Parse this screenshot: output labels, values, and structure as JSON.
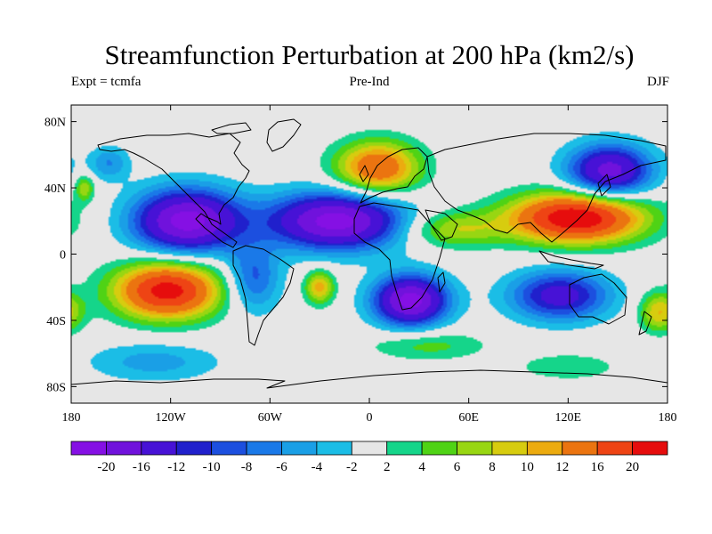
{
  "title": "Streamfunction Perturbation at 200 hPa (km2/s)",
  "subtitle_left": "Expt = tcmfa",
  "subtitle_center": "Pre-Ind",
  "subtitle_right": "DJF",
  "map": {
    "projection": "cylindrical-equidistant",
    "lon_range": [
      -180,
      180
    ],
    "lat_range": [
      -90,
      90
    ],
    "background_color": "#e6e6e6",
    "x_ticks": [
      {
        "lon": -180,
        "label": "180"
      },
      {
        "lon": -120,
        "label": "120W"
      },
      {
        "lon": -60,
        "label": "60W"
      },
      {
        "lon": 0,
        "label": "0"
      },
      {
        "lon": 60,
        "label": "60E"
      },
      {
        "lon": 120,
        "label": "120E"
      },
      {
        "lon": 180,
        "label": "180"
      }
    ],
    "y_ticks": [
      {
        "lat": 80,
        "label": "80N"
      },
      {
        "lat": 40,
        "label": "40N"
      },
      {
        "lat": 0,
        "label": "0"
      },
      {
        "lat": -40,
        "label": "40S"
      },
      {
        "lat": -80,
        "label": "80S"
      }
    ]
  },
  "anomalies": [
    {
      "name": "north-pacific-high",
      "lon": -172,
      "lat": 40,
      "rx": 6,
      "ry": 8,
      "value": 8
    },
    {
      "name": "pacific-low-north",
      "lon": -157,
      "lat": 55,
      "rx": 12,
      "ry": 10,
      "value": -6
    },
    {
      "name": "mexico-low",
      "lon": -110,
      "lat": 20,
      "rx": 32,
      "ry": 19,
      "value": -22
    },
    {
      "name": "south-pacific-high",
      "lon": -122,
      "lat": -22,
      "rx": 32,
      "ry": 17,
      "value": 22
    },
    {
      "name": "south-america-low",
      "lon": -70,
      "lat": -15,
      "rx": 16,
      "ry": 20,
      "value": -9
    },
    {
      "name": "atlantic-low",
      "lon": -20,
      "lat": 20,
      "rx": 40,
      "ry": 17,
      "value": -22
    },
    {
      "name": "europe-high",
      "lon": 5,
      "lat": 52,
      "rx": 25,
      "ry": 16,
      "value": 16
    },
    {
      "name": "south-atlantic-high",
      "lon": -30,
      "lat": -20,
      "rx": 9,
      "ry": 10,
      "value": 11
    },
    {
      "name": "south-africa-low",
      "lon": 25,
      "lat": -28,
      "rx": 22,
      "ry": 15,
      "value": -22
    },
    {
      "name": "arabia-high",
      "lon": 50,
      "lat": 15,
      "rx": 30,
      "ry": 11,
      "value": 8
    },
    {
      "name": "asia-high",
      "lon": 125,
      "lat": 22,
      "rx": 40,
      "ry": 15,
      "value": 24
    },
    {
      "name": "west-pacific-low",
      "lon": 145,
      "lat": 50,
      "rx": 25,
      "ry": 16,
      "value": -18
    },
    {
      "name": "australia-low",
      "lon": 115,
      "lat": -25,
      "rx": 30,
      "ry": 15,
      "value": -14
    },
    {
      "name": "southern-ocean-low-east",
      "lon": 175,
      "lat": -35,
      "rx": 12,
      "ry": 12,
      "value": 10
    },
    {
      "name": "southern-ocean-high",
      "lon": 35,
      "lat": -55,
      "rx": 35,
      "ry": 9,
      "value": 5
    },
    {
      "name": "southern-ocean-low-west",
      "lon": -130,
      "lat": -65,
      "rx": 40,
      "ry": 12,
      "value": -5
    },
    {
      "name": "east-pacific-high",
      "lon": 120,
      "lat": -68,
      "rx": 30,
      "ry": 8,
      "value": 4
    }
  ],
  "color_scale": {
    "colors": [
      "#8510e4",
      "#7012dc",
      "#4712d6",
      "#2020cc",
      "#1c4fdf",
      "#1a79e8",
      "#1a9fe6",
      "#1bbde6",
      "#e6e6e6",
      "#15d58a",
      "#4fd315",
      "#98d612",
      "#d7cc0f",
      "#ecab0f",
      "#eb7410",
      "#ee4414",
      "#e60d0d"
    ],
    "labels": [
      "-20",
      "-16",
      "-12",
      "-10",
      "-8",
      "-6",
      "-4",
      "-2",
      "2",
      "4",
      "6",
      "8",
      "10",
      "12",
      "16",
      "20"
    ],
    "levels": [
      -20,
      -16,
      -12,
      -10,
      -8,
      -6,
      -4,
      -2,
      2,
      4,
      6,
      8,
      10,
      12,
      16,
      20
    ]
  }
}
